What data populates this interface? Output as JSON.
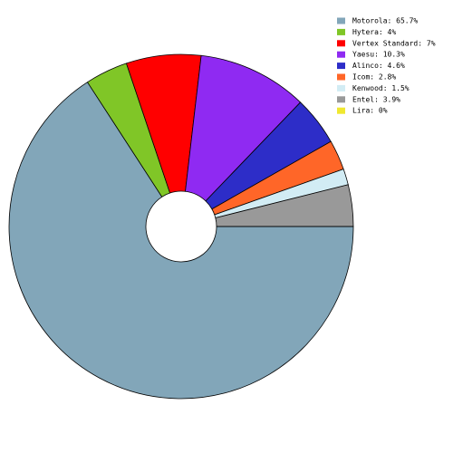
{
  "chart_data": {
    "type": "pie",
    "categories": [
      "Motorola: 65.7%",
      "Hytera: 4%",
      "Vertex Standard: 7%",
      "Yaesu: 10.3%",
      "Alinco: 4.6%",
      "Icom: 2.8%",
      "Kenwood: 1.5%",
      "Entel: 3.9%",
      "Lira: 0%"
    ],
    "values": [
      65.7,
      4,
      7,
      10.3,
      4.6,
      2.8,
      1.5,
      3.9,
      0
    ],
    "colors": [
      "#82a6b9",
      "#80c627",
      "#ff0000",
      "#8f2af2",
      "#2d2dc8",
      "#ff6628",
      "#d2ecf4",
      "#999999",
      "#f0e830"
    ],
    "legend": "top-right"
  }
}
